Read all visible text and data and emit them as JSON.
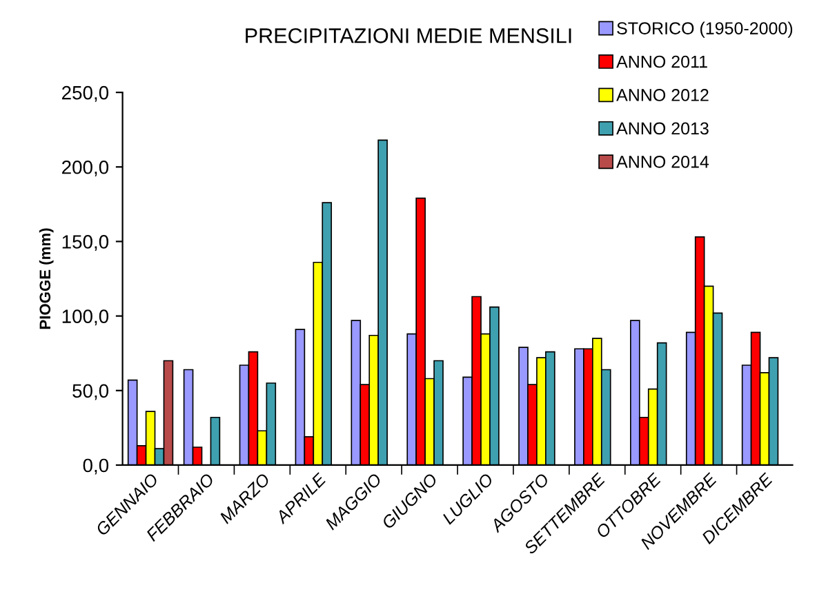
{
  "chart_data": {
    "type": "bar",
    "title": "PRECIPITAZIONI MEDIE MENSILI",
    "ylabel": "PIOGGE (mm)",
    "categories": [
      "GENNAIO",
      "FEBBRAIO",
      "MARZO",
      "APRILE",
      "MAGGIO",
      "GIUGNO",
      "LUGLIO",
      "AGOSTO",
      "SETTEMBRE",
      "OTTOBRE",
      "NOVEMBRE",
      "DICEMBRE"
    ],
    "series": [
      {
        "name": "STORICO (1950-2000)",
        "color": "#9999ff",
        "values": [
          57,
          64,
          67,
          91,
          97,
          88,
          59,
          79,
          78,
          97,
          89,
          67
        ]
      },
      {
        "name": "ANNO 2011",
        "color": "#ff0000",
        "values": [
          13,
          12,
          76,
          19,
          54,
          179,
          113,
          54,
          78,
          32,
          153,
          89
        ]
      },
      {
        "name": "ANNO 2012",
        "color": "#ffff00",
        "values": [
          36,
          null,
          23,
          136,
          87,
          58,
          88,
          72,
          85,
          51,
          120,
          62
        ]
      },
      {
        "name": "ANNO 2013",
        "color": "#3fa0b0",
        "values": [
          11,
          32,
          55,
          176,
          218,
          70,
          106,
          76,
          64,
          82,
          102,
          72
        ]
      },
      {
        "name": "ANNO 2014",
        "color": "#b84a4a",
        "values": [
          70,
          null,
          null,
          null,
          null,
          null,
          null,
          null,
          null,
          null,
          null,
          null
        ]
      }
    ],
    "ylim": [
      0,
      250
    ],
    "yticks": [
      {
        "value": 0,
        "label": "0,0"
      },
      {
        "value": 50,
        "label": "50,0"
      },
      {
        "value": 100,
        "label": "100,0"
      },
      {
        "value": 150,
        "label": "150,0"
      },
      {
        "value": 200,
        "label": "200,0"
      },
      {
        "value": 250,
        "label": "250,0"
      }
    ],
    "grid": false,
    "legend": "top right"
  }
}
